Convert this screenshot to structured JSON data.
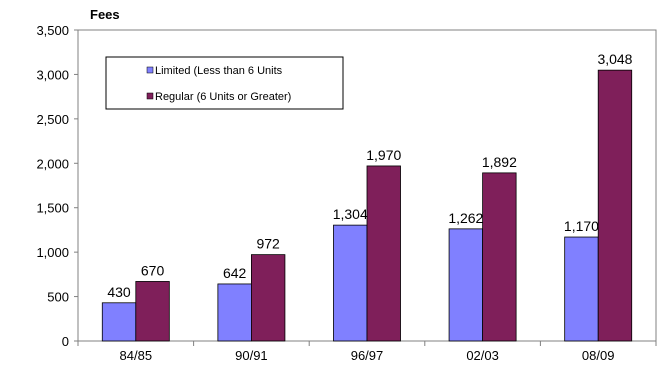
{
  "chart_data": {
    "type": "bar",
    "ylabel": "Fees",
    "xlabel": "",
    "categories": [
      "84/85",
      "90/91",
      "96/97",
      "02/03",
      "08/09"
    ],
    "series": [
      {
        "name": "Limited (Less than 6 Units",
        "values": [
          430,
          642,
          1304,
          1262,
          1170
        ],
        "color": "#8080ff"
      },
      {
        "name": "Regular (6 Units or Greater)",
        "values": [
          670,
          972,
          1970,
          1892,
          3048
        ],
        "color": "#7f1f5a"
      }
    ],
    "ylim": [
      0,
      3500
    ],
    "ytick_step": 500,
    "yticks": [
      "0",
      "500",
      "1,000",
      "1,500",
      "2,000",
      "2,500",
      "3,000",
      "3,500"
    ],
    "data_labels": [
      [
        "430",
        "642",
        "1,304",
        "1,262",
        "1,170"
      ],
      [
        "670",
        "972",
        "1,970",
        "1,892",
        "3,048"
      ]
    ],
    "grid": false,
    "legend": "upper-left inside plot"
  }
}
